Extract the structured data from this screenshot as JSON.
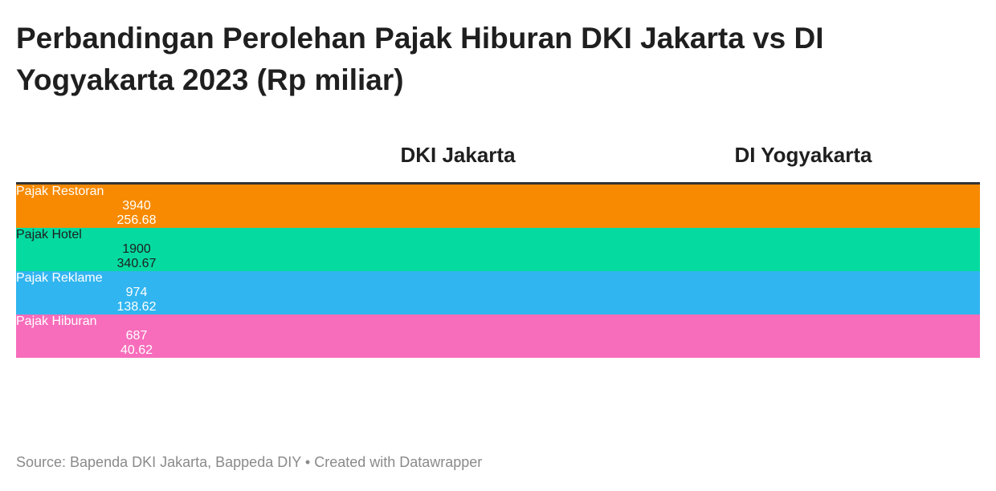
{
  "header": {
    "title": "Perbandingan Perolehan Pajak Hiburan DKI Jakarta vs DI Yogyakarta 2023 (Rp miliar)"
  },
  "table": {
    "columns": [
      "DKI Jakarta",
      "DI Yogyakarta"
    ],
    "rows": [
      {
        "label": "Pajak Restoran",
        "values": [
          3940,
          256.68
        ],
        "color": "#f78a00",
        "text_color": "#ffffff"
      },
      {
        "label": "Pajak Hotel",
        "values": [
          1900,
          340.67
        ],
        "color": "#05dba0",
        "text_color": "#1f1f1f"
      },
      {
        "label": "Pajak Reklame",
        "values": [
          974,
          138.62
        ],
        "color": "#31b5f0",
        "text_color": "#ffffff"
      },
      {
        "label": "Pajak Hiburan",
        "values": [
          687,
          40.62
        ],
        "color": "#f76dbb",
        "text_color": "#ffffff"
      }
    ]
  },
  "footer": {
    "source": "Source: Bapenda DKI Jakarta, Bappeda DIY • Created with Datawrapper"
  }
}
